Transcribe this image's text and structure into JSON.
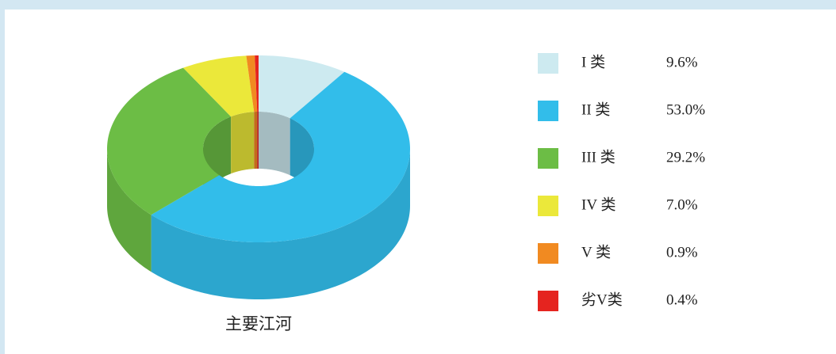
{
  "chart_data": {
    "type": "donut3d",
    "title": "主要江河",
    "categories": [
      "I 类",
      "II 类",
      "III 类",
      "IV 类",
      "V 类",
      "劣V类"
    ],
    "values": [
      9.6,
      53.0,
      29.2,
      7.0,
      0.9,
      0.4
    ],
    "value_labels": [
      "9.6%",
      "53.0%",
      "29.2%",
      "7.0%",
      "0.9%",
      "0.4%"
    ],
    "colors": [
      "#cdeaf0",
      "#32bdea",
      "#6cbd45",
      "#ebe83a",
      "#f18a21",
      "#e5241f"
    ]
  }
}
